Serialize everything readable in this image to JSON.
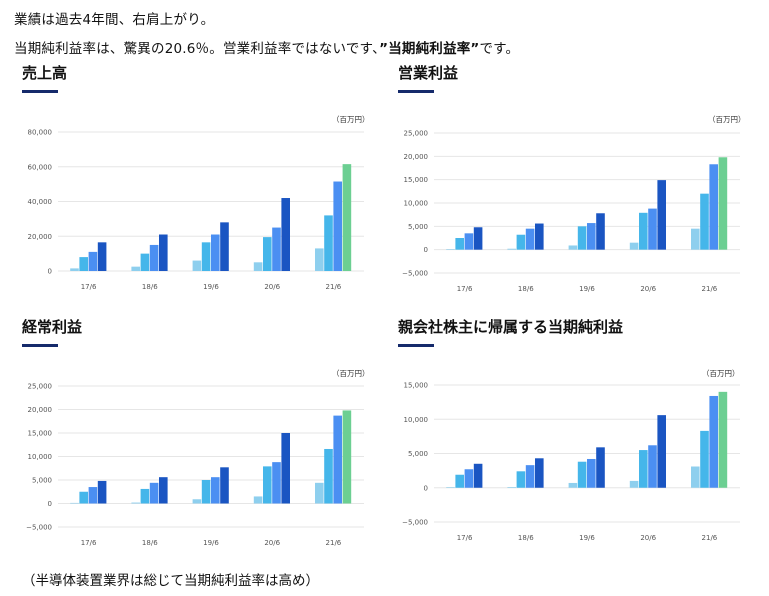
{
  "text": {
    "line1": "業績は過去4年間、右肩上がり。",
    "line2_pre": "当期純利益率は、驚異の20.6％。営業利益率ではないです、",
    "line2_bold": "”当期純利益率”",
    "line2_post": "です。",
    "footer": "（半導体装置業界は総じて当期純利益率は高め）"
  },
  "colors": {
    "title_bar": "#152a6b",
    "series": [
      "#8ecfee",
      "#45b6ea",
      "#4b8ff2",
      "#1a55c2",
      "#6ccf92"
    ]
  },
  "chart_data": [
    {
      "type": "bar",
      "title": "売上高",
      "unit": "（百万円）",
      "categories": [
        "17/6",
        "18/6",
        "19/6",
        "20/6",
        "21/6"
      ],
      "ylim": [
        0,
        80000
      ],
      "yticks": [
        0,
        20000,
        40000,
        60000,
        80000
      ],
      "ytick_labels": [
        "0",
        "20,000",
        "40,000",
        "60,000",
        "80,000"
      ],
      "grid": true,
      "values": [
        [
          1500,
          8000,
          11000,
          16500
        ],
        [
          2500,
          10000,
          15000,
          21000
        ],
        [
          6000,
          16500,
          21000,
          28000
        ],
        [
          5000,
          19500,
          25000,
          42000
        ],
        [
          13000,
          32000,
          51500,
          61500
        ]
      ]
    },
    {
      "type": "bar",
      "title": "営業利益",
      "unit": "（百万円）",
      "categories": [
        "17/6",
        "18/6",
        "19/6",
        "20/6",
        "21/6"
      ],
      "ylim": [
        -5000,
        25000
      ],
      "yticks": [
        -5000,
        0,
        5000,
        10000,
        15000,
        20000,
        25000
      ],
      "ytick_labels": [
        "−5,000",
        "0",
        "5,000",
        "10,000",
        "15,000",
        "20,000",
        "25,000"
      ],
      "grid": true,
      "values": [
        [
          0,
          2500,
          3500,
          4800
        ],
        [
          200,
          3200,
          4500,
          5600
        ],
        [
          900,
          5000,
          5700,
          7800
        ],
        [
          1500,
          7900,
          8800,
          14900
        ],
        [
          4500,
          12000,
          18300,
          19800
        ]
      ]
    },
    {
      "type": "bar",
      "title": "経常利益",
      "unit": "（百万円）",
      "categories": [
        "17/6",
        "18/6",
        "19/6",
        "20/6",
        "21/6"
      ],
      "ylim": [
        -5000,
        25000
      ],
      "yticks": [
        -5000,
        0,
        5000,
        10000,
        15000,
        20000,
        25000
      ],
      "ytick_labels": [
        "−5,000",
        "0",
        "5,000",
        "10,000",
        "15,000",
        "20,000",
        "25,000"
      ],
      "grid": true,
      "values": [
        [
          0,
          2500,
          3500,
          4800
        ],
        [
          200,
          3100,
          4400,
          5600
        ],
        [
          900,
          5000,
          5600,
          7700
        ],
        [
          1500,
          7900,
          8800,
          15000
        ],
        [
          4400,
          11600,
          18700,
          19800
        ]
      ]
    },
    {
      "type": "bar",
      "title": "親会社株主に帰属する当期純利益",
      "unit": "（百万円）",
      "categories": [
        "17/6",
        "18/6",
        "19/6",
        "20/6",
        "21/6"
      ],
      "ylim": [
        -5000,
        15000
      ],
      "yticks": [
        -5000,
        0,
        5000,
        10000,
        15000
      ],
      "ytick_labels": [
        "−5,000",
        "0",
        "5,000",
        "10,000",
        "15,000"
      ],
      "grid": true,
      "values": [
        [
          0,
          1900,
          2700,
          3500
        ],
        [
          100,
          2400,
          3300,
          4300
        ],
        [
          700,
          3800,
          4200,
          5900
        ],
        [
          1000,
          5500,
          6200,
          10600
        ],
        [
          3100,
          8300,
          13400,
          14000
        ]
      ]
    }
  ]
}
